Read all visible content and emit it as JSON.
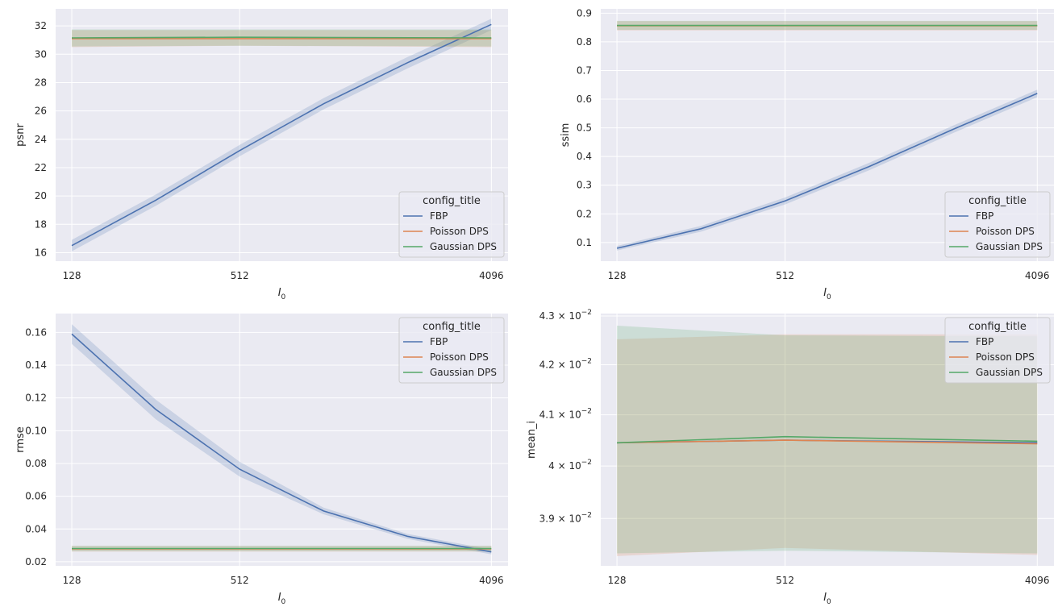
{
  "chart_data": [
    {
      "type": "line",
      "id": "psnr",
      "xlabel": "I",
      "xlabel_sub": "0",
      "ylabel": "psnr",
      "xscale": "log2",
      "xlim": [
        112,
        4700
      ],
      "ylim": [
        15.4,
        33.2
      ],
      "xticks": [
        128,
        512,
        4096
      ],
      "xtick_labels": [
        "128",
        "512",
        "4096"
      ],
      "yticks": [
        16,
        18,
        20,
        22,
        24,
        26,
        28,
        30,
        32
      ],
      "ytick_labels": [
        "16",
        "18",
        "20",
        "22",
        "24",
        "26",
        "28",
        "30",
        "32"
      ],
      "legend": {
        "title": "config_title",
        "position": "lower-right"
      },
      "series": [
        {
          "name": "FBP",
          "color": "#4c72b0",
          "x": [
            128,
            256,
            512,
            1024,
            2048,
            4096
          ],
          "y": [
            16.5,
            19.7,
            23.2,
            26.5,
            29.4,
            32.1
          ],
          "lo": [
            16.1,
            19.3,
            22.8,
            26.1,
            29.0,
            31.7
          ],
          "hi": [
            16.9,
            20.1,
            23.6,
            26.9,
            29.8,
            32.5
          ]
        },
        {
          "name": "Poisson DPS",
          "color": "#dd8452",
          "x": [
            128,
            512,
            4096
          ],
          "y": [
            31.1,
            31.1,
            31.1
          ],
          "lo": [
            30.5,
            30.6,
            30.5
          ],
          "hi": [
            31.7,
            31.7,
            31.7
          ]
        },
        {
          "name": "Gaussian DPS",
          "color": "#55a868",
          "x": [
            128,
            512,
            4096
          ],
          "y": [
            31.15,
            31.2,
            31.15
          ],
          "lo": [
            30.55,
            30.6,
            30.55
          ],
          "hi": [
            31.75,
            31.75,
            31.75
          ]
        }
      ]
    },
    {
      "type": "line",
      "id": "ssim",
      "xlabel": "I",
      "xlabel_sub": "0",
      "ylabel": "ssim",
      "xscale": "log2",
      "xlim": [
        112,
        4700
      ],
      "ylim": [
        0.035,
        0.915
      ],
      "xticks": [
        128,
        512,
        4096
      ],
      "xtick_labels": [
        "128",
        "512",
        "4096"
      ],
      "yticks": [
        0.1,
        0.2,
        0.3,
        0.4,
        0.5,
        0.6,
        0.7,
        0.8,
        0.9
      ],
      "ytick_labels": [
        "0.1",
        "0.2",
        "0.3",
        "0.4",
        "0.5",
        "0.6",
        "0.7",
        "0.8",
        "0.9"
      ],
      "legend": {
        "title": "config_title",
        "position": "lower-right"
      },
      "series": [
        {
          "name": "FBP",
          "color": "#4c72b0",
          "x": [
            128,
            256,
            512,
            1024,
            2048,
            4096
          ],
          "y": [
            0.08,
            0.148,
            0.245,
            0.365,
            0.495,
            0.62
          ],
          "lo": [
            0.072,
            0.138,
            0.233,
            0.352,
            0.482,
            0.607
          ],
          "hi": [
            0.088,
            0.158,
            0.257,
            0.378,
            0.508,
            0.633
          ]
        },
        {
          "name": "Poisson DPS",
          "color": "#dd8452",
          "x": [
            128,
            512,
            4096
          ],
          "y": [
            0.856,
            0.856,
            0.856
          ],
          "lo": [
            0.84,
            0.84,
            0.84
          ],
          "hi": [
            0.872,
            0.872,
            0.872
          ]
        },
        {
          "name": "Gaussian DPS",
          "color": "#55a868",
          "x": [
            128,
            512,
            4096
          ],
          "y": [
            0.857,
            0.857,
            0.857
          ],
          "lo": [
            0.842,
            0.842,
            0.842
          ],
          "hi": [
            0.873,
            0.873,
            0.873
          ]
        }
      ]
    },
    {
      "type": "line",
      "id": "rmse",
      "xlabel": "I",
      "xlabel_sub": "0",
      "ylabel": "rmse",
      "xscale": "log2",
      "xlim": [
        112,
        4700
      ],
      "ylim": [
        0.0175,
        0.1715
      ],
      "xticks": [
        128,
        512,
        4096
      ],
      "xtick_labels": [
        "128",
        "512",
        "4096"
      ],
      "yticks": [
        0.02,
        0.04,
        0.06,
        0.08,
        0.1,
        0.12,
        0.14,
        0.16
      ],
      "ytick_labels": [
        "0.02",
        "0.04",
        "0.06",
        "0.08",
        "0.10",
        "0.12",
        "0.14",
        "0.16"
      ],
      "legend": {
        "title": "config_title",
        "position": "upper-right"
      },
      "series": [
        {
          "name": "FBP",
          "color": "#4c72b0",
          "x": [
            128,
            256,
            512,
            1024,
            2048,
            4096
          ],
          "y": [
            0.159,
            0.113,
            0.0765,
            0.051,
            0.0355,
            0.026
          ],
          "lo": [
            0.153,
            0.107,
            0.072,
            0.049,
            0.034,
            0.0245
          ],
          "hi": [
            0.165,
            0.119,
            0.081,
            0.053,
            0.037,
            0.0275
          ]
        },
        {
          "name": "Poisson DPS",
          "color": "#dd8452",
          "x": [
            128,
            512,
            4096
          ],
          "y": [
            0.0279,
            0.0279,
            0.0279
          ],
          "lo": [
            0.0262,
            0.0262,
            0.0262
          ],
          "hi": [
            0.0296,
            0.0296,
            0.0296
          ]
        },
        {
          "name": "Gaussian DPS",
          "color": "#55a868",
          "x": [
            128,
            512,
            4096
          ],
          "y": [
            0.0281,
            0.0281,
            0.0281
          ],
          "lo": [
            0.0264,
            0.0264,
            0.0264
          ],
          "hi": [
            0.0298,
            0.0298,
            0.0298
          ]
        }
      ]
    },
    {
      "type": "line",
      "id": "mean_i",
      "xlabel": "I",
      "xlabel_sub": "0",
      "ylabel": "mean_i",
      "xscale": "log2",
      "yscale": "log",
      "xlim": [
        112,
        4700
      ],
      "ylim": [
        0.03812,
        0.04305
      ],
      "xticks": [
        128,
        512,
        4096
      ],
      "xtick_labels": [
        "128",
        "512",
        "4096"
      ],
      "yticks": [
        0.039,
        0.04,
        0.041,
        0.042,
        0.043
      ],
      "ytick_labels": [
        "3.9",
        "4",
        "4.1",
        "4.2",
        "4.3"
      ],
      "ytick_suffix": "× 10",
      "ytick_exponent": "−2",
      "legend": {
        "title": "config_title",
        "position": "upper-right"
      },
      "series": [
        {
          "name": "FBP",
          "color": "#4c72b0",
          "x": [
            128,
            512,
            4096
          ],
          "y": [
            0.04045,
            0.0405,
            0.04045
          ],
          "lo": [
            0.04045,
            0.0405,
            0.04045
          ],
          "hi": [
            0.04045,
            0.0405,
            0.04045
          ]
        },
        {
          "name": "Poisson DPS",
          "color": "#dd8452",
          "x": [
            128,
            512,
            4096
          ],
          "y": [
            0.04045,
            0.0405,
            0.04043
          ],
          "lo": [
            0.0383,
            0.03845,
            0.03832
          ],
          "hi": [
            0.04252,
            0.04262,
            0.04262
          ]
        },
        {
          "name": "Gaussian DPS",
          "color": "#55a868",
          "x": [
            128,
            512,
            4096
          ],
          "y": [
            0.04045,
            0.04057,
            0.04048
          ],
          "lo": [
            0.03835,
            0.0384,
            0.03835
          ],
          "hi": [
            0.0428,
            0.0426,
            0.04258
          ]
        }
      ]
    }
  ]
}
